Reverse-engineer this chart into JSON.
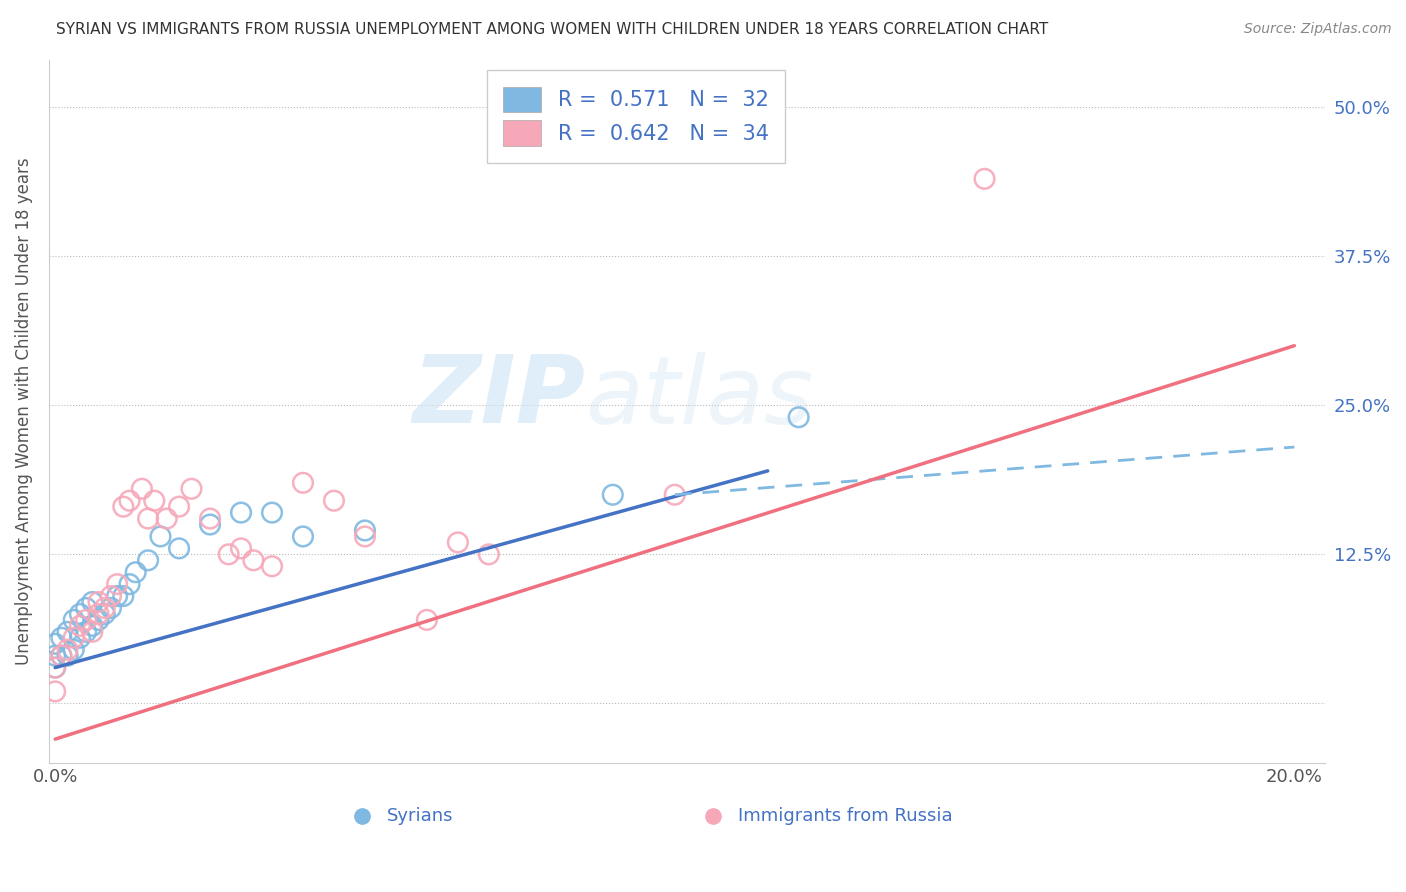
{
  "title": "SYRIAN VS IMMIGRANTS FROM RUSSIA UNEMPLOYMENT AMONG WOMEN WITH CHILDREN UNDER 18 YEARS CORRELATION CHART",
  "source": "Source: ZipAtlas.com",
  "ylabel": "Unemployment Among Women with Children Under 18 years",
  "y_ticks": [
    0.0,
    0.125,
    0.25,
    0.375,
    0.5
  ],
  "y_tick_labels": [
    "",
    "12.5%",
    "25.0%",
    "37.5%",
    "50.0%"
  ],
  "xlim": [
    -0.001,
    0.205
  ],
  "ylim": [
    -0.05,
    0.54
  ],
  "R_syrian": 0.571,
  "N_syrian": 32,
  "R_russia": 0.642,
  "N_russia": 34,
  "color_syrian": "#7fb8e0",
  "color_russia": "#f7a8b8",
  "color_syrian_line": "#4472c4",
  "color_russia_line": "#f07080",
  "color_dashed": "#7fb8e0",
  "watermark_zip": "ZIP",
  "watermark_atlas": "atlas",
  "legend_labels": [
    "Syrians",
    "Immigrants from Russia"
  ],
  "syrian_x": [
    0.0,
    0.0,
    0.0,
    0.001,
    0.001,
    0.002,
    0.002,
    0.003,
    0.003,
    0.004,
    0.004,
    0.005,
    0.005,
    0.006,
    0.006,
    0.007,
    0.008,
    0.009,
    0.01,
    0.011,
    0.012,
    0.013,
    0.015,
    0.017,
    0.02,
    0.025,
    0.03,
    0.035,
    0.04,
    0.05,
    0.09,
    0.12
  ],
  "syrian_y": [
    0.03,
    0.04,
    0.05,
    0.04,
    0.055,
    0.04,
    0.06,
    0.045,
    0.07,
    0.055,
    0.075,
    0.06,
    0.08,
    0.065,
    0.085,
    0.07,
    0.075,
    0.08,
    0.09,
    0.09,
    0.1,
    0.11,
    0.12,
    0.14,
    0.13,
    0.15,
    0.16,
    0.16,
    0.14,
    0.145,
    0.175,
    0.24
  ],
  "russia_x": [
    0.0,
    0.0,
    0.001,
    0.002,
    0.003,
    0.004,
    0.005,
    0.006,
    0.007,
    0.007,
    0.008,
    0.009,
    0.01,
    0.011,
    0.012,
    0.014,
    0.015,
    0.016,
    0.018,
    0.02,
    0.022,
    0.025,
    0.028,
    0.03,
    0.032,
    0.035,
    0.04,
    0.045,
    0.05,
    0.06,
    0.065,
    0.07,
    0.1,
    0.15
  ],
  "russia_y": [
    0.01,
    0.03,
    0.04,
    0.045,
    0.055,
    0.065,
    0.07,
    0.06,
    0.075,
    0.085,
    0.08,
    0.09,
    0.1,
    0.165,
    0.17,
    0.18,
    0.155,
    0.17,
    0.155,
    0.165,
    0.18,
    0.155,
    0.125,
    0.13,
    0.12,
    0.115,
    0.185,
    0.17,
    0.14,
    0.07,
    0.135,
    0.125,
    0.175,
    0.44
  ],
  "blue_line_x0": 0.0,
  "blue_line_y0": 0.03,
  "blue_line_x1": 0.115,
  "blue_line_y1": 0.195,
  "dashed_line_x0": 0.1,
  "dashed_line_y0": 0.175,
  "dashed_line_x1": 0.2,
  "dashed_line_y1": 0.215,
  "pink_line_x0": 0.0,
  "pink_line_y0": -0.03,
  "pink_line_x1": 0.2,
  "pink_line_y1": 0.3
}
